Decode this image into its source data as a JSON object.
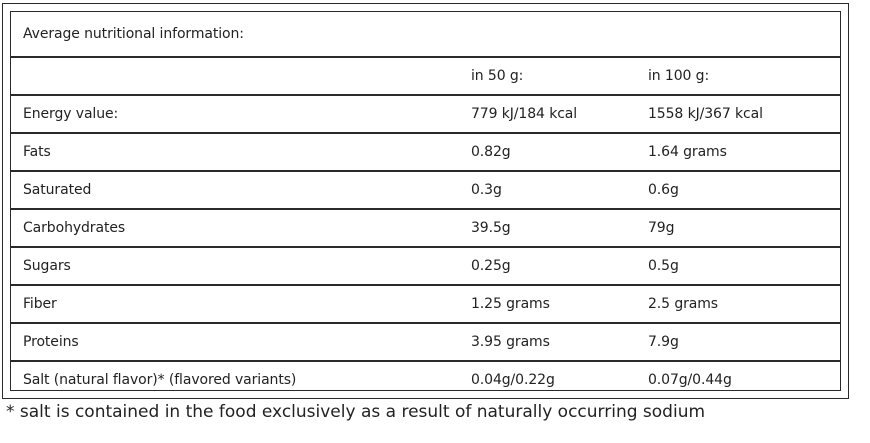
{
  "table": {
    "title": "Average nutritional information:",
    "columns": [
      "",
      "in 50 g:",
      "in 100 g:"
    ],
    "rows": [
      [
        "Energy value:",
        "779 kJ/184 kcal",
        "1558 kJ/367 kcal"
      ],
      [
        "Fats",
        "0.82g",
        "1.64 grams"
      ],
      [
        "Saturated",
        "0.3g",
        "0.6g"
      ],
      [
        "Carbohydrates",
        "39.5g",
        "79g"
      ],
      [
        "Sugars",
        "0.25g",
        "0.5g"
      ],
      [
        "Fiber",
        "1.25 grams",
        "2.5 grams"
      ],
      [
        "Proteins",
        "3.95 grams",
        "7.9g"
      ],
      [
        "Salt (natural flavor)* (flavored variants)",
        "0.04g/0.22g",
        "0.07g/0.44g"
      ]
    ]
  },
  "footnote": "* salt is contained in the food exclusively as a result of naturally occurring sodium"
}
